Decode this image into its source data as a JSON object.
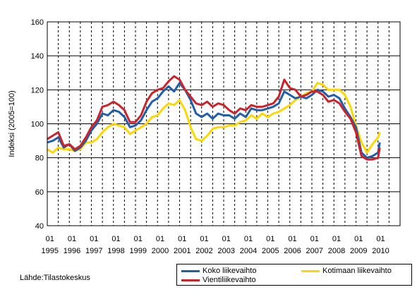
{
  "chart_data": {
    "type": "line",
    "title": "",
    "xlabel": "",
    "ylabel": "Indeksi (2005=100)",
    "ylim": [
      40,
      160
    ],
    "yticks": [
      40,
      60,
      80,
      100,
      120,
      140,
      160
    ],
    "xlim": [
      1995.0,
      2011.0
    ],
    "x_tick_top": "01",
    "x_years": [
      "1995",
      "1996",
      "1997",
      "1998",
      "1999",
      "2000",
      "2001",
      "2002",
      "2003",
      "2004",
      "2005",
      "2006",
      "2007",
      "2008",
      "2009",
      "2010"
    ],
    "grid": true,
    "legend_position": "bottom-right",
    "x": [
      1995.0,
      1995.25,
      1995.5,
      1995.75,
      1996.0,
      1996.25,
      1996.5,
      1996.75,
      1997.0,
      1997.25,
      1997.5,
      1997.75,
      1998.0,
      1998.25,
      1998.5,
      1998.75,
      1999.0,
      1999.25,
      1999.5,
      1999.75,
      2000.0,
      2000.25,
      2000.5,
      2000.75,
      2001.0,
      2001.25,
      2001.5,
      2001.75,
      2002.0,
      2002.25,
      2002.5,
      2002.75,
      2003.0,
      2003.25,
      2003.5,
      2003.75,
      2004.0,
      2004.25,
      2004.5,
      2004.75,
      2005.0,
      2005.25,
      2005.5,
      2005.75,
      2006.0,
      2006.25,
      2006.5,
      2006.75,
      2007.0,
      2007.25,
      2007.5,
      2007.75,
      2008.0,
      2008.25,
      2008.5,
      2008.75,
      2009.0,
      2009.25,
      2009.5,
      2009.75,
      2010.0,
      2010.08
    ],
    "series": [
      {
        "name": "Koko liikevaihto",
        "color": "#1f5faa",
        "values": [
          89,
          90,
          92,
          86,
          88,
          84,
          86,
          90,
          96,
          100,
          106,
          105,
          108,
          107,
          104,
          98,
          99,
          102,
          108,
          113,
          115,
          119,
          122,
          119,
          124,
          120,
          114,
          106,
          104,
          106,
          103,
          106,
          105,
          105,
          103,
          106,
          104,
          109,
          108,
          108,
          109,
          110,
          112,
          119,
          117,
          115,
          116,
          115,
          117,
          120,
          119,
          116,
          117,
          115,
          109,
          104,
          98,
          83,
          80,
          81,
          83,
          89
        ]
      },
      {
        "name": "Kotimaan liikevaihto",
        "color": "#ffd700",
        "values": [
          85,
          83,
          86,
          85,
          85,
          84,
          85,
          89,
          89,
          91,
          95,
          98,
          100,
          99,
          98,
          94,
          96,
          98,
          100,
          104,
          105,
          109,
          112,
          111,
          114,
          108,
          98,
          91,
          90,
          93,
          97,
          98,
          98,
          99,
          99,
          101,
          102,
          105,
          103,
          106,
          104,
          106,
          107,
          109,
          111,
          114,
          116,
          118,
          119,
          124,
          123,
          120,
          120,
          120,
          117,
          110,
          99,
          89,
          83,
          88,
          92,
          95
        ]
      },
      {
        "name": "Vientiliikevaihto",
        "color": "#cc2229",
        "values": [
          91,
          93,
          95,
          87,
          88,
          85,
          87,
          92,
          98,
          102,
          110,
          111,
          113,
          111,
          108,
          101,
          101,
          105,
          113,
          118,
          120,
          121,
          125,
          128,
          126,
          120,
          116,
          112,
          111,
          113,
          110,
          112,
          111,
          108,
          106,
          109,
          108,
          111,
          110,
          110,
          111,
          112,
          116,
          126,
          121,
          120,
          116,
          117,
          119,
          119,
          117,
          113,
          114,
          112,
          107,
          103,
          95,
          81,
          79,
          79,
          80,
          86
        ]
      }
    ],
    "source": "Lähde:Tilastokeskus"
  }
}
